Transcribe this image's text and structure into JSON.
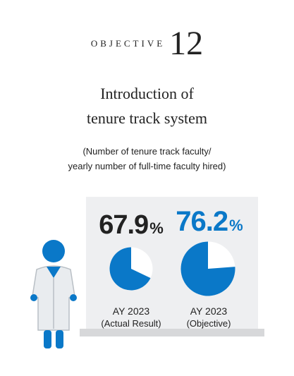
{
  "header": {
    "objective_label": "OBJECTIVE",
    "objective_number": "12"
  },
  "title": {
    "line1": "Introduction of",
    "line2": "tenure track system"
  },
  "subtitle": {
    "line1": "(Number of tenure track faculty/",
    "line2": "yearly number of full-time faculty hired)"
  },
  "colors": {
    "accent": "#0a78c8",
    "pie_empty": "#ffffff",
    "panel": "#eeeff1",
    "text": "#222222"
  },
  "icons": [
    "doctor-figure-icon"
  ],
  "chart_data": [
    {
      "type": "pie",
      "value": 67.9,
      "value_label": "67.9",
      "unit": "%",
      "caption_line1": "AY 2023",
      "caption_line2": "(Actual Result)",
      "label_color": "#222222"
    },
    {
      "type": "pie",
      "value": 76.2,
      "value_label": "76.2",
      "unit": "%",
      "caption_line1": "AY 2023",
      "caption_line2": "(Objective)",
      "label_color": "#0a78c8"
    }
  ]
}
